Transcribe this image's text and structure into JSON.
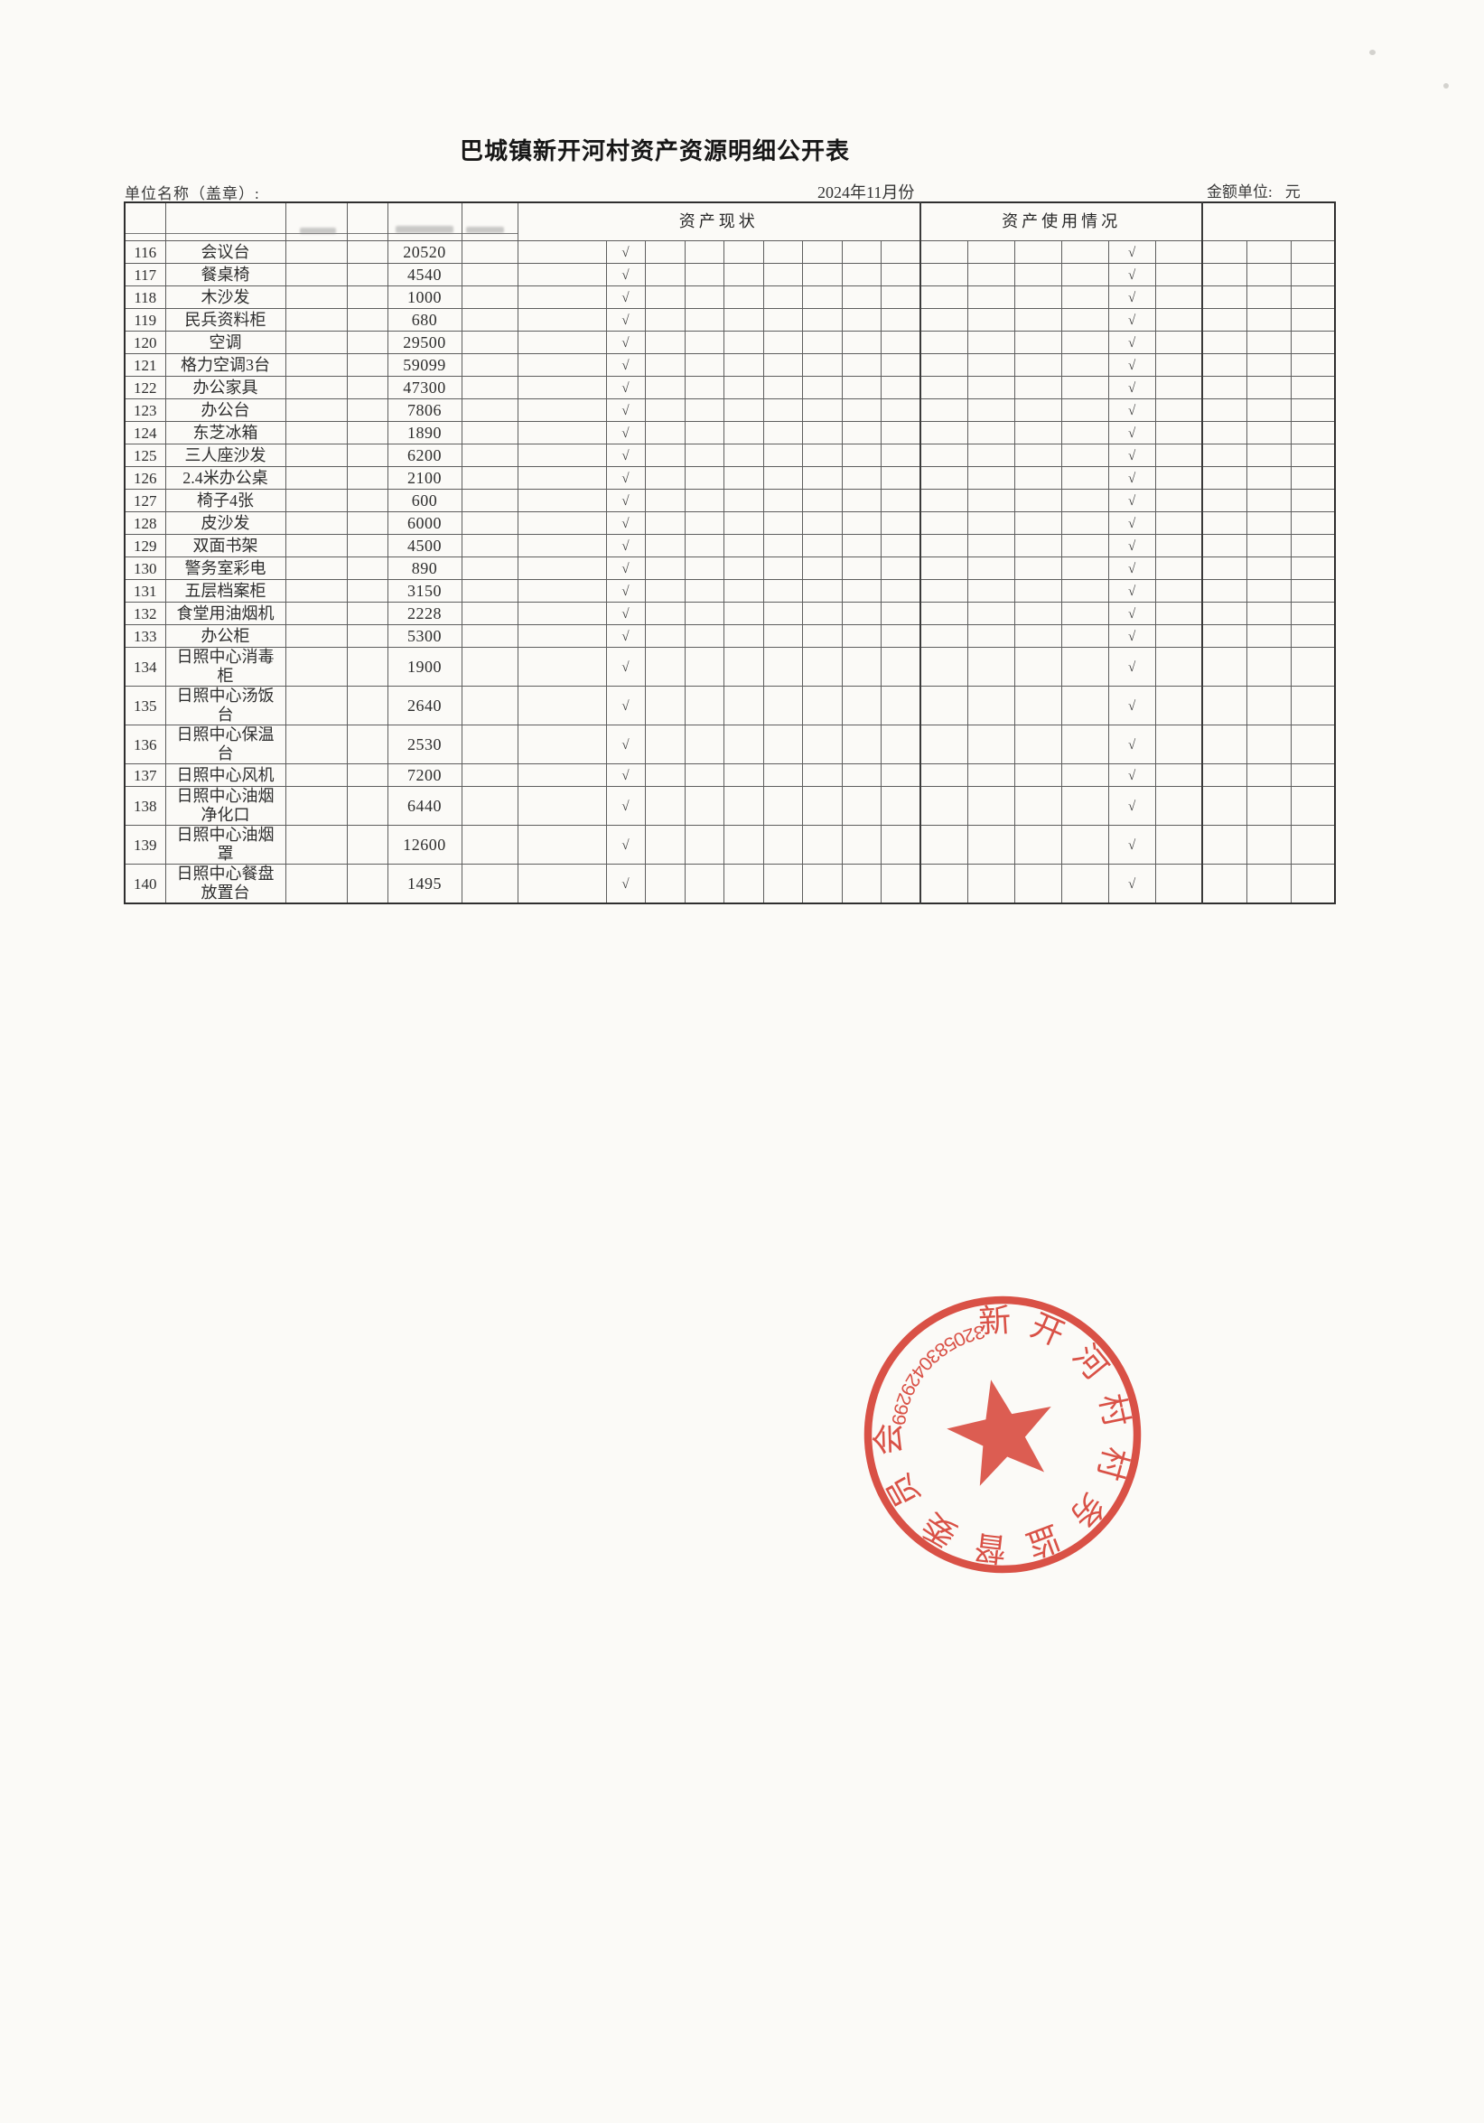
{
  "page": {
    "title": "巴城镇新开河村资产资源明细公开表",
    "unit_label": "单位名称（盖章）:",
    "period": "2024年11月份",
    "amount_unit_label": "金额单位:",
    "amount_unit_value": "元"
  },
  "table": {
    "status_group_label": "资产现状",
    "usage_group_label": "资产使用情况",
    "check_mark": "√",
    "rows": [
      {
        "no": "116",
        "name": "会议台",
        "value": "20520",
        "status_check": true,
        "usage_check": true
      },
      {
        "no": "117",
        "name": "餐桌椅",
        "value": "4540",
        "status_check": true,
        "usage_check": true
      },
      {
        "no": "118",
        "name": "木沙发",
        "value": "1000",
        "status_check": true,
        "usage_check": true
      },
      {
        "no": "119",
        "name": "民兵资料柜",
        "value": "680",
        "status_check": true,
        "usage_check": true
      },
      {
        "no": "120",
        "name": "空调",
        "value": "29500",
        "status_check": true,
        "usage_check": true
      },
      {
        "no": "121",
        "name": "格力空调3台",
        "value": "59099",
        "status_check": true,
        "usage_check": true
      },
      {
        "no": "122",
        "name": "办公家具",
        "value": "47300",
        "status_check": true,
        "usage_check": true
      },
      {
        "no": "123",
        "name": "办公台",
        "value": "7806",
        "status_check": true,
        "usage_check": true
      },
      {
        "no": "124",
        "name": "东芝冰箱",
        "value": "1890",
        "status_check": true,
        "usage_check": true
      },
      {
        "no": "125",
        "name": "三人座沙发",
        "value": "6200",
        "status_check": true,
        "usage_check": true
      },
      {
        "no": "126",
        "name": "2.4米办公桌",
        "value": "2100",
        "status_check": true,
        "usage_check": true
      },
      {
        "no": "127",
        "name": "椅子4张",
        "value": "600",
        "status_check": true,
        "usage_check": true
      },
      {
        "no": "128",
        "name": "皮沙发",
        "value": "6000",
        "status_check": true,
        "usage_check": true
      },
      {
        "no": "129",
        "name": "双面书架",
        "value": "4500",
        "status_check": true,
        "usage_check": true
      },
      {
        "no": "130",
        "name": "警务室彩电",
        "value": "890",
        "status_check": true,
        "usage_check": true
      },
      {
        "no": "131",
        "name": "五层档案柜",
        "value": "3150",
        "status_check": true,
        "usage_check": true
      },
      {
        "no": "132",
        "name": "食堂用油烟机",
        "value": "2228",
        "status_check": true,
        "usage_check": true
      },
      {
        "no": "133",
        "name": "办公柜",
        "value": "5300",
        "status_check": true,
        "usage_check": true
      },
      {
        "no": "134",
        "name": "日照中心消毒柜",
        "value": "1900",
        "status_check": true,
        "usage_check": true
      },
      {
        "no": "135",
        "name": "日照中心汤饭台",
        "value": "2640",
        "status_check": true,
        "usage_check": true
      },
      {
        "no": "136",
        "name": "日照中心保温台",
        "value": "2530",
        "status_check": true,
        "usage_check": true
      },
      {
        "no": "137",
        "name": "日照中心风机",
        "value": "7200",
        "status_check": true,
        "usage_check": true
      },
      {
        "no": "138",
        "name": "日照中心油烟净化口",
        "value": "6440",
        "status_check": true,
        "usage_check": true
      },
      {
        "no": "139",
        "name": "日照中心油烟罩",
        "value": "12600",
        "status_check": true,
        "usage_check": true
      },
      {
        "no": "140",
        "name": "日照中心餐盘放置台",
        "value": "1495",
        "status_check": true,
        "usage_check": true
      }
    ]
  },
  "stamp": {
    "ring_text": "新开河村村务监督委员会",
    "serial_number": "3205830429299",
    "color": "#d5382c"
  }
}
